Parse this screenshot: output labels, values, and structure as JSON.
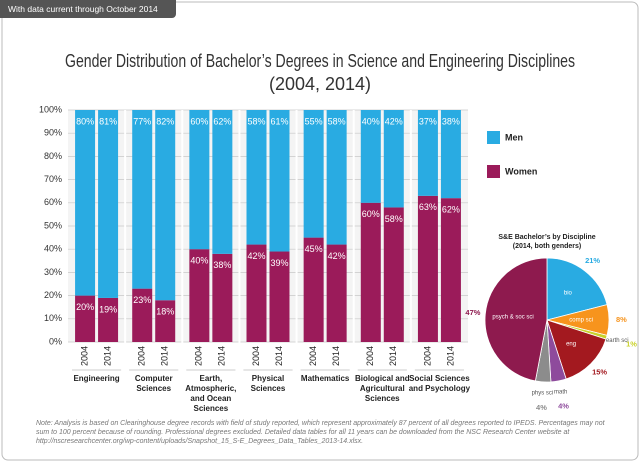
{
  "header": "With data current through October 2014",
  "note": "Note: Analysis is based on Clearinghouse degree records with field of study reported, which represent approximately 87 percent of all degrees reported to IPEDS. Percentages may not sum to 100 percent because of rounding. Professional degrees excluded. Detailed data tables for all 11 years can be downloaded from the NSC Research Center website at http://nscresearchcenter.org/wp-content/uploads/Snapshot_15_S-E_Degrees_Data_Tables_2013-14.xlsx.",
  "chart_data": [
    {
      "type": "bar",
      "title": "Gender Distribution of Bachelor’s Degrees in Science and Engineering Disciplines",
      "subtitle": "(2004, 2014)",
      "groups": [
        "Engineering",
        "Computer Sciences",
        "Earth, Atmospheric, and Ocean Sciences",
        "Physical Sciences",
        "Mathematics",
        "Biological and Agricultural Sciences",
        "Social Sciences and Psychology"
      ],
      "categories": [
        "2004",
        "2014",
        "2004",
        "2014",
        "2004",
        "2014",
        "2004",
        "2014",
        "2004",
        "2014",
        "2004",
        "2014",
        "2004",
        "2014"
      ],
      "series": [
        {
          "name": "Men",
          "color": "#29abe2",
          "values": [
            80,
            81,
            77,
            82,
            60,
            62,
            58,
            61,
            55,
            58,
            40,
            42,
            37,
            38
          ],
          "value_labels": [
            "80%",
            "81%",
            "77%",
            "82%",
            "60%",
            "62%",
            "58%",
            "61%",
            "55%",
            "58%",
            "40%",
            "42%",
            "37%",
            "38%"
          ]
        },
        {
          "name": "Women",
          "color": "#9b1b5a",
          "values": [
            20,
            19,
            23,
            18,
            40,
            38,
            42,
            39,
            45,
            42,
            60,
            58,
            63,
            62
          ],
          "value_labels": [
            "20%",
            "19%",
            "23%",
            "18%",
            "40%",
            "38%",
            "42%",
            "39%",
            "45%",
            "42%",
            "60%",
            "58%",
            "63%",
            "62%"
          ]
        }
      ],
      "stacked": true,
      "ylim": [
        0,
        100
      ],
      "yticks": [
        {
          "value": 0,
          "label": "0%"
        },
        {
          "value": 10,
          "label": "10%"
        },
        {
          "value": 20,
          "label": "20%"
        },
        {
          "value": 30,
          "label": "30%"
        },
        {
          "value": 40,
          "label": "40%"
        },
        {
          "value": 50,
          "label": "50%"
        },
        {
          "value": 60,
          "label": "60%"
        },
        {
          "value": 70,
          "label": "70%"
        },
        {
          "value": 80,
          "label": "80%"
        },
        {
          "value": 90,
          "label": "90%"
        },
        {
          "value": 100,
          "label": "100%"
        }
      ],
      "grid": true,
      "legend": "right"
    },
    {
      "type": "pie",
      "title": "S&E Bachelor’s by Discipline",
      "subtitle": "(2014, both genders)",
      "categories": [
        "bio",
        "comp sci",
        "earth sci",
        "eng",
        "math",
        "phys sci",
        "psych & soc sci"
      ],
      "values": [
        21,
        8,
        1,
        15,
        4,
        4,
        47
      ],
      "value_labels": [
        "21%",
        "8%",
        "1%",
        "15%",
        "4%",
        "4%",
        "47%"
      ],
      "colors": [
        "#29abe2",
        "#f7941d",
        "#c9d22b",
        "#a3191f",
        "#8e4b9c",
        "#8c8c8c",
        "#8e1a4e"
      ]
    }
  ]
}
